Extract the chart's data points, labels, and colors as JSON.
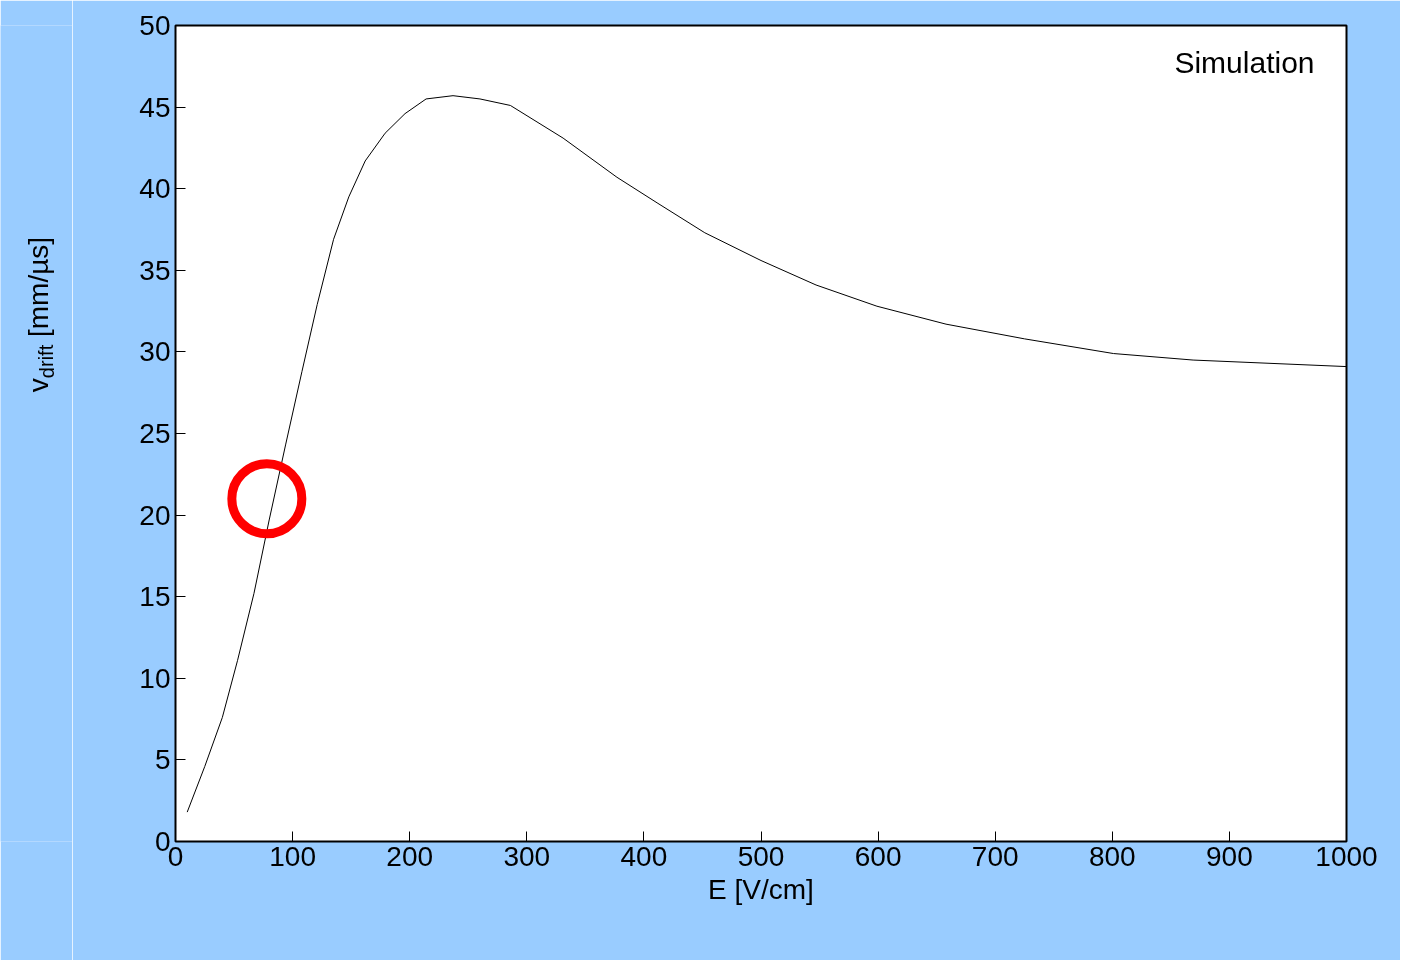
{
  "chart_data": {
    "type": "line",
    "xlabel": "E [V/cm]",
    "ylabel": "v$_{drift}$ [mm/µs]",
    "annotations": [
      "Simulation"
    ],
    "xlim": [
      0,
      1000
    ],
    "xticks": [
      0,
      100,
      200,
      300,
      400,
      500,
      600,
      700,
      800,
      900,
      1000
    ],
    "ylim": [
      0,
      50
    ],
    "yticks": [
      0,
      5,
      10,
      15,
      20,
      25,
      30,
      35,
      40,
      45,
      50
    ],
    "grid": false,
    "series": [
      {
        "color": "#000000",
        "x": [
          10,
          25,
          40,
          53,
          67,
          80,
          94,
          108,
          121,
          135,
          148,
          162,
          179,
          196,
          214,
          237,
          260,
          286,
          331,
          377,
          412,
          452,
          500,
          547,
          599,
          658,
          725,
          801,
          869,
          1000
        ],
        "values": [
          1.8,
          4.6,
          7.6,
          11.1,
          15.2,
          19.7,
          24.3,
          28.8,
          32.9,
          36.9,
          39.5,
          41.7,
          43.4,
          44.6,
          45.5,
          45.7,
          45.5,
          45.1,
          43.1,
          40.7,
          39.1,
          37.3,
          35.6,
          34.1,
          32.8,
          31.7,
          30.8,
          29.9,
          29.5,
          29.1
        ]
      },
      {
        "type": "scatter",
        "marker": "circle",
        "color": "#ff0000",
        "x": [
          78
        ],
        "values": [
          21
        ]
      }
    ]
  }
}
